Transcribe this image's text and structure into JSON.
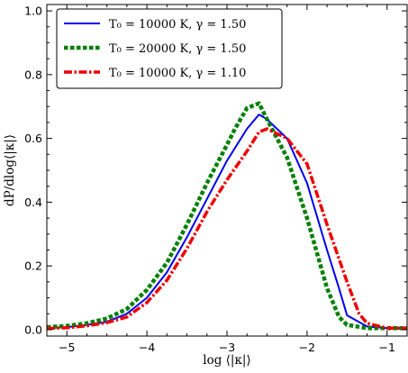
{
  "chart_data": {
    "type": "line",
    "xlabel": "log ⟨|κ|⟩",
    "ylabel": "dP/dlog⟨|κ|⟩",
    "xlim": [
      -5.25,
      -0.75
    ],
    "ylim": [
      -0.02,
      1.02
    ],
    "xticks": [
      -5,
      -4,
      -3,
      -2,
      -1
    ],
    "xtick_labels": [
      "−5",
      "−4",
      "−3",
      "−2",
      "−1"
    ],
    "yticks": [
      0.0,
      0.2,
      0.4,
      0.6,
      0.8,
      1.0
    ],
    "ytick_labels": [
      "0.0",
      "0.2",
      "0.4",
      "0.6",
      "0.8",
      "1.0"
    ],
    "grid": false,
    "legend_position": "top-left",
    "series": [
      {
        "name": "T₀ = 10000 K, γ = 1.50",
        "color": "#0000ee",
        "style": "solid",
        "x": [
          -5.25,
          -5.0,
          -4.75,
          -4.5,
          -4.25,
          -4.0,
          -3.75,
          -3.5,
          -3.25,
          -3.0,
          -2.75,
          -2.6,
          -2.5,
          -2.25,
          -2.0,
          -1.75,
          -1.6,
          -1.5,
          -1.25,
          -1.0,
          -0.75
        ],
        "y": [
          0.005,
          0.008,
          0.015,
          0.025,
          0.05,
          0.1,
          0.18,
          0.29,
          0.41,
          0.53,
          0.63,
          0.675,
          0.66,
          0.6,
          0.46,
          0.25,
          0.13,
          0.045,
          0.01,
          0.005,
          0.005
        ]
      },
      {
        "name": "T₀ = 20000 K, γ = 1.50",
        "color": "#008000",
        "style": "dotted",
        "x": [
          -5.25,
          -5.0,
          -4.75,
          -4.5,
          -4.25,
          -4.0,
          -3.75,
          -3.5,
          -3.25,
          -3.0,
          -2.9,
          -2.75,
          -2.6,
          -2.5,
          -2.25,
          -2.0,
          -1.75,
          -1.6,
          -1.5,
          -1.25,
          -1.0,
          -0.75
        ],
        "y": [
          0.008,
          0.012,
          0.02,
          0.035,
          0.065,
          0.125,
          0.21,
          0.33,
          0.46,
          0.58,
          0.63,
          0.695,
          0.71,
          0.66,
          0.54,
          0.35,
          0.13,
          0.04,
          0.015,
          0.005,
          0.005,
          0.005
        ]
      },
      {
        "name": "T₀ = 10000 K, γ = 1.10",
        "color": "#ee0000",
        "style": "dashdot",
        "x": [
          -5.25,
          -5.0,
          -4.75,
          -4.5,
          -4.25,
          -4.0,
          -3.75,
          -3.5,
          -3.25,
          -3.0,
          -2.75,
          -2.6,
          -2.5,
          -2.25,
          -2.0,
          -1.75,
          -1.5,
          -1.35,
          -1.25,
          -1.0,
          -0.75
        ],
        "y": [
          0.004,
          0.006,
          0.012,
          0.022,
          0.04,
          0.085,
          0.155,
          0.255,
          0.37,
          0.47,
          0.56,
          0.62,
          0.63,
          0.6,
          0.52,
          0.33,
          0.15,
          0.05,
          0.02,
          0.005,
          0.005
        ]
      }
    ]
  }
}
